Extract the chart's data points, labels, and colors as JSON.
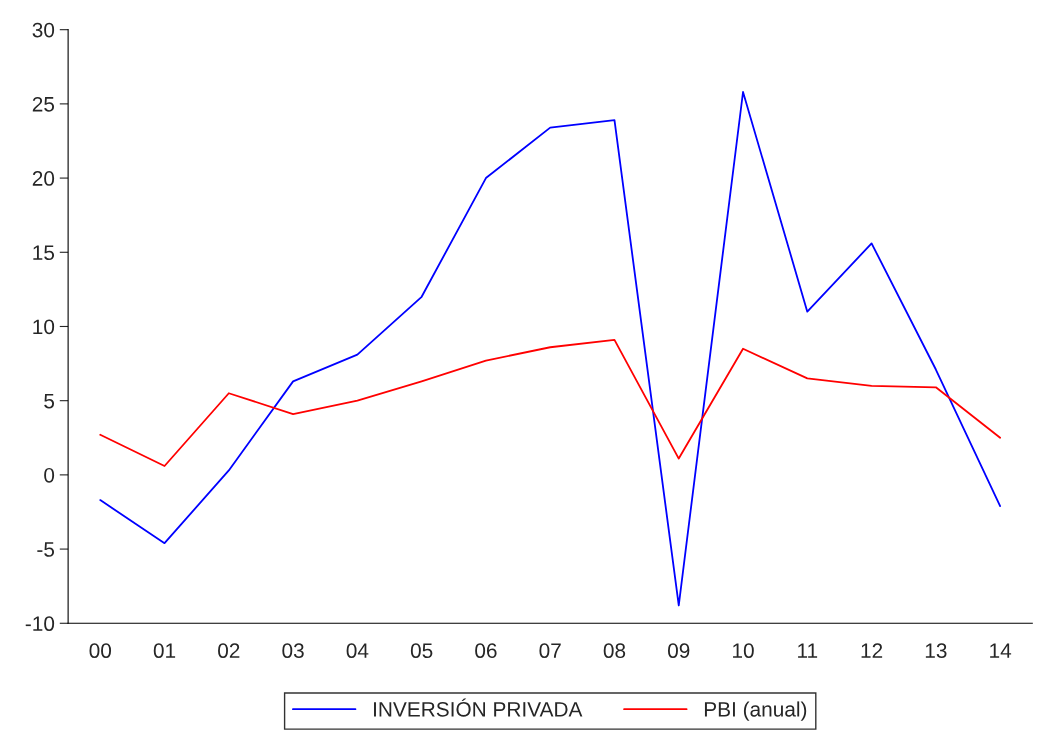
{
  "chart_data": {
    "type": "line",
    "categories": [
      "00",
      "01",
      "02",
      "03",
      "04",
      "05",
      "06",
      "07",
      "08",
      "09",
      "10",
      "11",
      "12",
      "13",
      "14"
    ],
    "series": [
      {
        "name": "INVERSIÓN PRIVADA",
        "color": "#0000ff",
        "values": [
          -1.7,
          -4.6,
          0.3,
          6.3,
          8.1,
          12.0,
          20.0,
          23.4,
          23.9,
          -8.8,
          25.8,
          11.0,
          15.6,
          7.1,
          -2.1
        ]
      },
      {
        "name": "PBI (anual)",
        "color": "#ff0000",
        "values": [
          2.7,
          0.6,
          5.5,
          4.1,
          5.0,
          6.3,
          7.7,
          8.6,
          9.1,
          1.1,
          8.5,
          6.5,
          6.0,
          5.9,
          2.5
        ]
      }
    ],
    "ylim": [
      -10,
      30
    ],
    "yticks": [
      -10,
      -5,
      0,
      5,
      10,
      15,
      20,
      25,
      30
    ],
    "grid": false,
    "legend": "bottom",
    "marker": "none",
    "line_style": "solid"
  }
}
